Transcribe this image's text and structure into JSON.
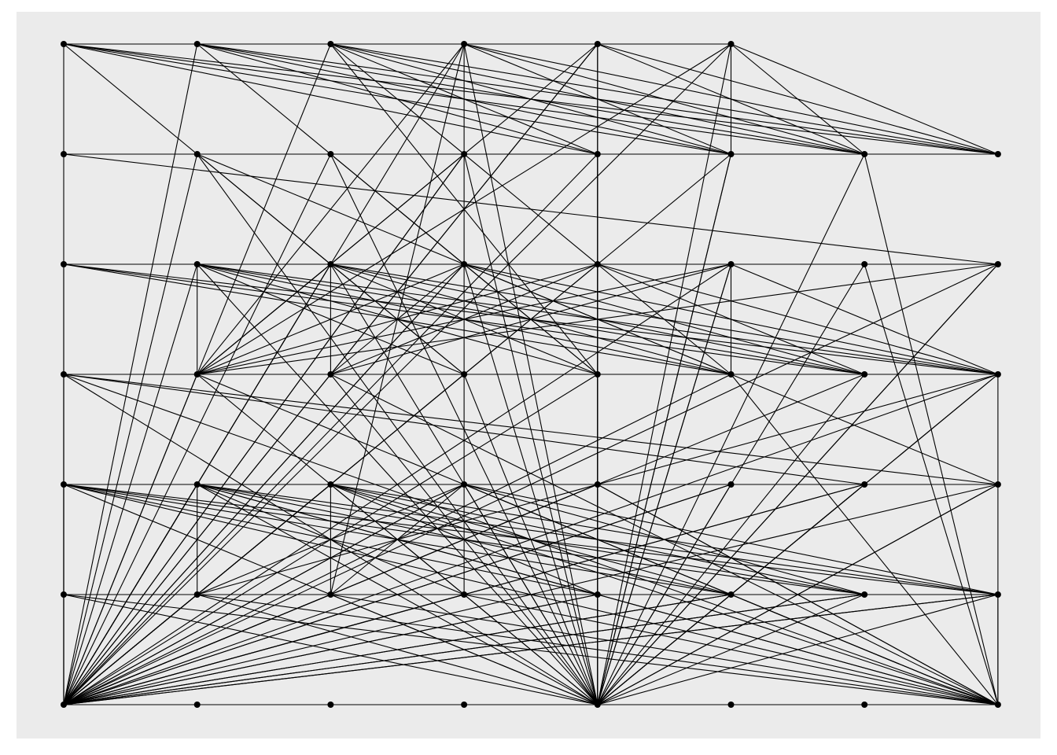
{
  "chart_data": {
    "type": "network-graph",
    "layout": "grid",
    "grid": {
      "columns": 8,
      "rows": 7
    },
    "colors": {
      "panel_background": "#ebebeb",
      "edge": "#000000",
      "node": "#000000"
    },
    "nodes": [
      {
        "id": "0-0"
      },
      {
        "id": "1-0"
      },
      {
        "id": "2-0"
      },
      {
        "id": "3-0"
      },
      {
        "id": "4-0"
      },
      {
        "id": "5-0"
      },
      {
        "id": "0-1"
      },
      {
        "id": "1-1"
      },
      {
        "id": "2-1"
      },
      {
        "id": "3-1"
      },
      {
        "id": "4-1"
      },
      {
        "id": "5-1"
      },
      {
        "id": "6-1"
      },
      {
        "id": "7-1"
      },
      {
        "id": "0-2"
      },
      {
        "id": "1-2"
      },
      {
        "id": "2-2"
      },
      {
        "id": "3-2"
      },
      {
        "id": "4-2"
      },
      {
        "id": "5-2"
      },
      {
        "id": "6-2"
      },
      {
        "id": "7-2"
      },
      {
        "id": "0-3"
      },
      {
        "id": "1-3"
      },
      {
        "id": "2-3"
      },
      {
        "id": "3-3"
      },
      {
        "id": "4-3"
      },
      {
        "id": "5-3"
      },
      {
        "id": "6-3"
      },
      {
        "id": "7-3"
      },
      {
        "id": "0-4"
      },
      {
        "id": "1-4"
      },
      {
        "id": "2-4"
      },
      {
        "id": "3-4"
      },
      {
        "id": "4-4"
      },
      {
        "id": "5-4"
      },
      {
        "id": "6-4"
      },
      {
        "id": "7-4"
      },
      {
        "id": "0-5"
      },
      {
        "id": "1-5"
      },
      {
        "id": "2-5"
      },
      {
        "id": "3-5"
      },
      {
        "id": "4-5"
      },
      {
        "id": "5-5"
      },
      {
        "id": "6-5"
      },
      {
        "id": "7-5"
      },
      {
        "id": "0-6"
      },
      {
        "id": "1-6"
      },
      {
        "id": "2-6"
      },
      {
        "id": "3-6"
      },
      {
        "id": "4-6"
      },
      {
        "id": "5-6"
      },
      {
        "id": "6-6"
      },
      {
        "id": "7-6"
      }
    ],
    "edges": [
      [
        "0-0",
        "1-0"
      ],
      [
        "1-0",
        "2-0"
      ],
      [
        "2-0",
        "3-0"
      ],
      [
        "3-0",
        "4-0"
      ],
      [
        "4-0",
        "5-0"
      ],
      [
        "0-0",
        "0-1"
      ],
      [
        "0-1",
        "0-2"
      ],
      [
        "0-2",
        "0-3"
      ],
      [
        "0-3",
        "0-4"
      ],
      [
        "0-4",
        "0-5"
      ],
      [
        "0-5",
        "0-6"
      ],
      [
        "3-0",
        "3-1"
      ],
      [
        "3-1",
        "3-2"
      ],
      [
        "3-2",
        "3-3"
      ],
      [
        "3-3",
        "3-4"
      ],
      [
        "3-4",
        "3-5"
      ],
      [
        "4-0",
        "4-1"
      ],
      [
        "4-1",
        "4-2"
      ],
      [
        "4-2",
        "4-3"
      ],
      [
        "4-3",
        "4-4"
      ],
      [
        "4-4",
        "4-5"
      ],
      [
        "4-5",
        "4-6"
      ],
      [
        "5-0",
        "5-1"
      ],
      [
        "5-2",
        "5-3"
      ],
      [
        "1-2",
        "1-3"
      ],
      [
        "2-2",
        "2-3"
      ],
      [
        "1-4",
        "1-5"
      ],
      [
        "2-4",
        "2-5"
      ],
      [
        "7-5",
        "7-6"
      ],
      [
        "0-1",
        "7-1"
      ],
      [
        "0-2",
        "7-2"
      ],
      [
        "0-3",
        "7-3"
      ],
      [
        "0-4",
        "7-4"
      ],
      [
        "0-5",
        "7-5"
      ],
      [
        "0-6",
        "7-6"
      ],
      [
        "0-0",
        "4-1"
      ],
      [
        "0-0",
        "5-1"
      ],
      [
        "0-0",
        "6-1"
      ],
      [
        "0-0",
        "7-1"
      ],
      [
        "0-0",
        "3-3"
      ],
      [
        "1-0",
        "4-1"
      ],
      [
        "1-0",
        "5-1"
      ],
      [
        "1-0",
        "6-1"
      ],
      [
        "1-0",
        "7-1"
      ],
      [
        "1-0",
        "0-6"
      ],
      [
        "1-0",
        "4-3"
      ],
      [
        "2-0",
        "4-1"
      ],
      [
        "2-0",
        "5-1"
      ],
      [
        "2-0",
        "6-1"
      ],
      [
        "2-0",
        "7-1"
      ],
      [
        "2-0",
        "4-3"
      ],
      [
        "2-0",
        "0-6"
      ],
      [
        "2-0",
        "5-3"
      ],
      [
        "3-0",
        "5-1"
      ],
      [
        "3-0",
        "6-1"
      ],
      [
        "3-0",
        "7-1"
      ],
      [
        "3-0",
        "0-6"
      ],
      [
        "3-0",
        "4-6"
      ],
      [
        "3-0",
        "2-5"
      ],
      [
        "3-0",
        "1-3"
      ],
      [
        "4-0",
        "6-1"
      ],
      [
        "4-0",
        "7-1"
      ],
      [
        "4-0",
        "0-6"
      ],
      [
        "4-0",
        "1-3"
      ],
      [
        "4-0",
        "2-3"
      ],
      [
        "4-0",
        "4-6"
      ],
      [
        "5-0",
        "7-1"
      ],
      [
        "5-0",
        "6-1"
      ],
      [
        "5-0",
        "0-6"
      ],
      [
        "5-0",
        "4-6"
      ],
      [
        "5-0",
        "1-3"
      ],
      [
        "0-1",
        "7-2"
      ],
      [
        "1-1",
        "3-3"
      ],
      [
        "1-1",
        "7-4"
      ],
      [
        "2-1",
        "4-3"
      ],
      [
        "2-1",
        "0-6"
      ],
      [
        "3-1",
        "1-3"
      ],
      [
        "3-1",
        "0-6"
      ],
      [
        "4-1",
        "0-6"
      ],
      [
        "5-1",
        "4-6"
      ],
      [
        "5-1",
        "0-6"
      ],
      [
        "0-2",
        "7-3"
      ],
      [
        "0-2",
        "6-3"
      ],
      [
        "0-2",
        "5-3"
      ],
      [
        "0-2",
        "0-6"
      ],
      [
        "1-2",
        "7-3"
      ],
      [
        "1-2",
        "6-3"
      ],
      [
        "1-2",
        "5-3"
      ],
      [
        "1-2",
        "4-3"
      ],
      [
        "1-2",
        "3-3"
      ],
      [
        "1-2",
        "4-6"
      ],
      [
        "1-2",
        "0-6"
      ],
      [
        "2-2",
        "7-3"
      ],
      [
        "2-2",
        "6-3"
      ],
      [
        "2-2",
        "5-3"
      ],
      [
        "2-2",
        "4-3"
      ],
      [
        "2-2",
        "1-3"
      ],
      [
        "2-2",
        "4-6"
      ],
      [
        "2-2",
        "0-6"
      ],
      [
        "3-2",
        "7-3"
      ],
      [
        "3-2",
        "6-3"
      ],
      [
        "3-2",
        "5-3"
      ],
      [
        "3-2",
        "2-3"
      ],
      [
        "3-2",
        "1-3"
      ],
      [
        "3-2",
        "4-6"
      ],
      [
        "3-2",
        "0-6"
      ],
      [
        "4-2",
        "7-3"
      ],
      [
        "4-2",
        "6-3"
      ],
      [
        "4-2",
        "2-3"
      ],
      [
        "4-2",
        "1-3"
      ],
      [
        "4-2",
        "0-6"
      ],
      [
        "4-2",
        "4-6"
      ],
      [
        "5-2",
        "7-3"
      ],
      [
        "5-2",
        "1-3"
      ],
      [
        "5-2",
        "2-3"
      ],
      [
        "5-2",
        "0-6"
      ],
      [
        "5-2",
        "4-6"
      ],
      [
        "7-2",
        "1-3"
      ],
      [
        "7-2",
        "0-6"
      ],
      [
        "7-2",
        "4-6"
      ],
      [
        "0-3",
        "7-4"
      ],
      [
        "0-3",
        "6-4"
      ],
      [
        "0-3",
        "0-6"
      ],
      [
        "0-3",
        "4-6"
      ],
      [
        "7-3",
        "1-5"
      ],
      [
        "7-3",
        "0-6"
      ],
      [
        "7-3",
        "4-6"
      ],
      [
        "6-3",
        "0-6"
      ],
      [
        "6-3",
        "4-6"
      ],
      [
        "5-3",
        "0-6"
      ],
      [
        "4-3",
        "0-6"
      ],
      [
        "3-3",
        "4-6"
      ],
      [
        "2-3",
        "4-6"
      ],
      [
        "1-3",
        "4-6"
      ],
      [
        "0-4",
        "7-5"
      ],
      [
        "0-4",
        "6-5"
      ],
      [
        "0-4",
        "5-5"
      ],
      [
        "0-4",
        "4-5"
      ],
      [
        "0-4",
        "0-6"
      ],
      [
        "0-4",
        "4-6"
      ],
      [
        "1-4",
        "7-5"
      ],
      [
        "1-4",
        "6-5"
      ],
      [
        "1-4",
        "5-5"
      ],
      [
        "1-4",
        "4-5"
      ],
      [
        "1-4",
        "3-5"
      ],
      [
        "1-4",
        "0-6"
      ],
      [
        "1-4",
        "4-6"
      ],
      [
        "2-4",
        "7-5"
      ],
      [
        "2-4",
        "6-5"
      ],
      [
        "2-4",
        "5-5"
      ],
      [
        "2-4",
        "4-5"
      ],
      [
        "2-4",
        "1-5"
      ],
      [
        "2-4",
        "0-6"
      ],
      [
        "2-4",
        "4-6"
      ],
      [
        "3-4",
        "7-5"
      ],
      [
        "3-4",
        "6-5"
      ],
      [
        "3-4",
        "5-5"
      ],
      [
        "3-4",
        "2-5"
      ],
      [
        "3-4",
        "1-5"
      ],
      [
        "3-4",
        "0-6"
      ],
      [
        "3-4",
        "4-6"
      ],
      [
        "4-4",
        "0-6"
      ],
      [
        "4-4",
        "7-6"
      ],
      [
        "5-4",
        "0-6"
      ],
      [
        "5-4",
        "4-6"
      ],
      [
        "6-4",
        "0-6"
      ],
      [
        "6-4",
        "4-6"
      ],
      [
        "7-4",
        "0-6"
      ],
      [
        "7-4",
        "4-6"
      ],
      [
        "0-5",
        "7-6"
      ],
      [
        "0-5",
        "4-6"
      ],
      [
        "1-5",
        "7-6"
      ],
      [
        "1-5",
        "4-6"
      ],
      [
        "2-5",
        "7-6"
      ],
      [
        "2-5",
        "4-6"
      ],
      [
        "3-5",
        "7-6"
      ],
      [
        "3-5",
        "0-6"
      ],
      [
        "4-5",
        "7-6"
      ],
      [
        "4-5",
        "0-6"
      ],
      [
        "5-5",
        "0-6"
      ],
      [
        "5-5",
        "7-6"
      ],
      [
        "6-5",
        "0-6"
      ],
      [
        "6-5",
        "4-6"
      ],
      [
        "7-5",
        "0-6"
      ],
      [
        "7-5",
        "4-6"
      ],
      [
        "0-6",
        "7-5"
      ],
      [
        "0-6",
        "6-5"
      ],
      [
        "0-6",
        "5-5"
      ],
      [
        "0-6",
        "4-5"
      ],
      [
        "0-6",
        "3-5"
      ],
      [
        "0-6",
        "2-5"
      ],
      [
        "0-6",
        "1-5"
      ],
      [
        "0-6",
        "6-4"
      ],
      [
        "0-6",
        "5-4"
      ],
      [
        "0-6",
        "4-4"
      ],
      [
        "0-6",
        "3-4"
      ],
      [
        "0-6",
        "2-4"
      ],
      [
        "0-6",
        "1-4"
      ],
      [
        "0-6",
        "3-3"
      ],
      [
        "0-6",
        "2-3"
      ],
      [
        "0-6",
        "1-3"
      ],
      [
        "0-6",
        "2-2"
      ],
      [
        "0-6",
        "3-2"
      ],
      [
        "0-6",
        "1-1"
      ],
      [
        "0-6",
        "3-1"
      ],
      [
        "4-6",
        "7-4"
      ],
      [
        "4-6",
        "6-4"
      ],
      [
        "4-6",
        "7-3"
      ],
      [
        "4-6",
        "7-2"
      ],
      [
        "4-6",
        "6-2"
      ],
      [
        "4-6",
        "5-2"
      ],
      [
        "4-6",
        "6-1"
      ],
      [
        "4-6",
        "5-1"
      ],
      [
        "4-6",
        "4-1"
      ],
      [
        "4-6",
        "3-1"
      ],
      [
        "4-6",
        "2-1"
      ],
      [
        "4-6",
        "1-1"
      ],
      [
        "7-6",
        "0-4"
      ],
      [
        "7-6",
        "1-4"
      ],
      [
        "7-6",
        "2-4"
      ],
      [
        "7-6",
        "3-4"
      ],
      [
        "7-6",
        "4-4"
      ],
      [
        "7-6",
        "1-3"
      ],
      [
        "7-6",
        "2-3"
      ],
      [
        "7-6",
        "0-3"
      ],
      [
        "7-6",
        "7-3"
      ],
      [
        "7-6",
        "6-1"
      ],
      [
        "7-6",
        "6-2"
      ],
      [
        "7-6",
        "5-3"
      ]
    ]
  }
}
